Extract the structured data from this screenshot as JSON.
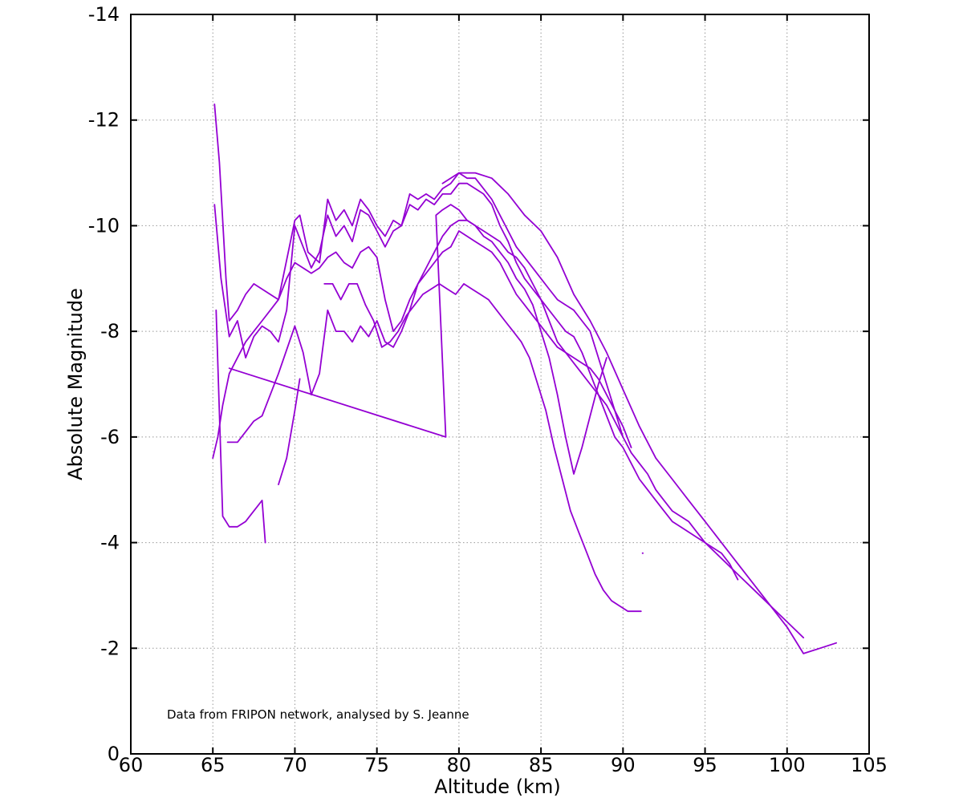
{
  "chart_data": {
    "type": "line",
    "xlabel": "Altitude (km)",
    "ylabel": "Absolute Magnitude",
    "xlim": [
      60,
      105
    ],
    "ylim": [
      0,
      -14
    ],
    "y_inverted": true,
    "x_ticks": [
      60,
      65,
      70,
      75,
      80,
      85,
      90,
      95,
      100,
      105
    ],
    "y_ticks": [
      0,
      -2,
      -4,
      -6,
      -8,
      -10,
      -12,
      -14
    ],
    "x_tick_labels": [
      "60",
      "65",
      "70",
      "75",
      "80",
      "85",
      "90",
      "95",
      "100",
      "105"
    ],
    "y_tick_labels": [
      "0",
      "-2",
      "-4",
      "-6",
      "-8",
      "-10",
      "-12",
      "-14"
    ],
    "grid": true,
    "line_color": "#9400d3",
    "annotation": "Data from FRIPON network, analysed by S. Jeanne",
    "series": [
      {
        "x": [
          65.1,
          65.4,
          65.6,
          65.8,
          66.0,
          66.5,
          67.0,
          67.5,
          68.0,
          69.0,
          70.0,
          70.3,
          70.8,
          71.5,
          72.0,
          72.5,
          73.0,
          73.5,
          74.0,
          74.5,
          75.0,
          75.5,
          76.0,
          76.5,
          77.0,
          77.5,
          78.0,
          78.5,
          79.0,
          79.5,
          80.0,
          80.5,
          81.0,
          81.5,
          82.0,
          82.5,
          83.0,
          83.5,
          84.0,
          84.5,
          85.0,
          85.5,
          86.0,
          86.5,
          87.0,
          87.5,
          88.0,
          88.5,
          89.0,
          89.5,
          90.0
        ],
        "y": [
          -12.3,
          -11.2,
          -10.1,
          -9.0,
          -8.2,
          -8.4,
          -8.7,
          -8.9,
          -8.8,
          -8.6,
          -10.1,
          -10.2,
          -9.5,
          -9.3,
          -10.5,
          -10.1,
          -10.3,
          -10.0,
          -10.5,
          -10.3,
          -10.0,
          -9.8,
          -10.1,
          -10.0,
          -10.6,
          -10.5,
          -10.6,
          -10.5,
          -10.7,
          -10.8,
          -11.0,
          -10.9,
          -10.9,
          -10.7,
          -10.5,
          -10.2,
          -9.9,
          -9.6,
          -9.4,
          -9.2,
          -9.0,
          -8.8,
          -8.6,
          -8.5,
          -8.4,
          -8.2,
          -8.0,
          -7.5,
          -7.0,
          -6.5,
          -6.0
        ]
      },
      {
        "x": [
          65.1,
          65.5,
          66.0,
          66.5,
          67.0,
          67.5,
          68.0,
          68.5,
          69.0,
          69.5,
          70.0,
          70.5,
          71.0,
          71.5,
          72.0,
          72.5,
          73.0,
          73.5,
          74.0,
          74.5,
          75.0,
          75.5,
          76.0,
          76.5,
          77.0,
          77.5,
          78.0,
          78.5,
          79.0,
          79.5,
          80.0,
          80.5,
          81.0,
          81.5,
          82.0,
          82.5,
          83.0,
          83.5,
          84.0,
          84.5,
          85.0,
          85.5,
          86.0,
          86.5,
          87.0,
          87.5,
          88.0,
          88.5,
          89.0,
          89.5,
          90.0,
          90.5,
          91.0,
          91.5,
          92.0,
          92.5,
          93.0,
          93.5,
          94.0,
          94.5,
          95.0,
          95.5,
          96.0,
          96.5,
          97.0
        ],
        "y": [
          -10.4,
          -9.0,
          -7.9,
          -8.2,
          -7.5,
          -7.9,
          -8.1,
          -8.0,
          -7.8,
          -8.4,
          -10.0,
          -9.6,
          -9.2,
          -9.5,
          -10.2,
          -9.8,
          -10.0,
          -9.7,
          -10.3,
          -10.2,
          -9.9,
          -9.6,
          -9.9,
          -10.0,
          -10.4,
          -10.3,
          -10.5,
          -10.4,
          -10.6,
          -10.6,
          -10.8,
          -10.8,
          -10.7,
          -10.6,
          -10.4,
          -10.0,
          -9.7,
          -9.3,
          -9.0,
          -8.8,
          -8.6,
          -8.4,
          -8.2,
          -8.0,
          -7.9,
          -7.6,
          -7.2,
          -6.8,
          -6.4,
          -6.0,
          -5.8,
          -5.5,
          -5.2,
          -5.0,
          -4.8,
          -4.6,
          -4.4,
          -4.3,
          -4.2,
          -4.1,
          -4.0,
          -3.9,
          -3.8,
          -3.6,
          -3.3
        ]
      },
      {
        "x": [
          65.0,
          65.3,
          65.6,
          66.0,
          66.5,
          67.0,
          67.5,
          68.0,
          68.5,
          69.0,
          69.5,
          70.0,
          70.5,
          71.0,
          71.5,
          72.0,
          72.5,
          73.0,
          73.5,
          74.0,
          74.5,
          75.0,
          75.5,
          76.0,
          76.5,
          77.0,
          77.5,
          78.0,
          78.5,
          79.0,
          79.5,
          80.0,
          80.5,
          81.0,
          81.5,
          82.0,
          82.5,
          83.0,
          83.5,
          84.0,
          84.5,
          85.0,
          85.5,
          86.0,
          86.5,
          87.0,
          87.5,
          88.0,
          88.5,
          89.0,
          89.5,
          90.0,
          90.5,
          91.0,
          91.5,
          92.0,
          92.5,
          93.0,
          93.5,
          94.0,
          94.5,
          95.0,
          96.0,
          97.0,
          98.0,
          99.0,
          100.0,
          101.0
        ],
        "y": [
          -5.6,
          -6.0,
          -6.6,
          -7.2,
          -7.5,
          -7.8,
          -8.0,
          -8.2,
          -8.4,
          -8.6,
          -9.0,
          -9.3,
          -9.2,
          -9.1,
          -9.2,
          -9.4,
          -9.5,
          -9.3,
          -9.2,
          -9.5,
          -9.6,
          -9.4,
          -8.6,
          -8.0,
          -8.2,
          -8.6,
          -8.9,
          -9.2,
          -9.5,
          -9.8,
          -10.0,
          -10.1,
          -10.1,
          -10.0,
          -9.9,
          -9.8,
          -9.7,
          -9.5,
          -9.4,
          -9.2,
          -8.9,
          -8.6,
          -8.2,
          -7.8,
          -7.6,
          -7.4,
          -7.2,
          -7.0,
          -6.8,
          -6.6,
          -6.3,
          -6.0,
          -5.7,
          -5.5,
          -5.3,
          -5.0,
          -4.8,
          -4.6,
          -4.5,
          -4.4,
          -4.2,
          -4.0,
          -3.7,
          -3.4,
          -3.1,
          -2.8,
          -2.5,
          -2.2
        ]
      },
      {
        "x": [
          65.9,
          66.5,
          67.0,
          67.5,
          68.0,
          69.0,
          70.0,
          70.5,
          71.0,
          71.5,
          72.0,
          72.5,
          73.0,
          73.5,
          74.0,
          74.5,
          75.0,
          75.5,
          76.0,
          76.5,
          77.0,
          77.5,
          78.0,
          78.5,
          79.0,
          79.5,
          80.0,
          80.5,
          81.0,
          81.5,
          82.0,
          82.5,
          83.0,
          83.5,
          84.0,
          84.5,
          85.0,
          85.5,
          86.0,
          86.5,
          87.0,
          87.5,
          88.0,
          88.5,
          89.0,
          89.5,
          90.0,
          90.5
        ],
        "y": [
          -5.9,
          -5.9,
          -6.1,
          -6.3,
          -6.4,
          -7.2,
          -8.1,
          -7.6,
          -6.8,
          -7.2,
          -8.4,
          -8.0,
          -8.0,
          -7.8,
          -8.1,
          -7.9,
          -8.2,
          -7.8,
          -7.7,
          -8.0,
          -8.4,
          -8.9,
          -9.1,
          -9.3,
          -9.5,
          -9.6,
          -9.9,
          -9.8,
          -9.7,
          -9.6,
          -9.5,
          -9.3,
          -9.0,
          -8.7,
          -8.5,
          -8.3,
          -8.1,
          -7.9,
          -7.7,
          -7.6,
          -7.5,
          -7.4,
          -7.3,
          -7.1,
          -6.8,
          -6.5,
          -6.2,
          -5.8
        ]
      },
      {
        "x": [
          65.2,
          65.6,
          66.0,
          66.5,
          67.0,
          67.5,
          68.0,
          68.2
        ],
        "y": [
          -8.4,
          -4.5,
          -4.3,
          -4.3,
          -4.4,
          -4.6,
          -4.8,
          -4.0
        ]
      },
      {
        "x": [
          69.0,
          69.5,
          70.0,
          70.3
        ],
        "y": [
          -5.1,
          -5.6,
          -6.5,
          -7.1
        ]
      },
      {
        "x": [
          66.0,
          79.2,
          78.6,
          79.0,
          79.5,
          80.0,
          80.5,
          81.0,
          81.5,
          82.0,
          82.5,
          83.0,
          83.5,
          84.0,
          84.5,
          85.0,
          85.5,
          86.0,
          86.5,
          87.0,
          87.5,
          88.0,
          88.5,
          89.0
        ],
        "y": [
          -7.3,
          -6.0,
          -10.2,
          -10.3,
          -10.4,
          -10.3,
          -10.1,
          -10.0,
          -9.8,
          -9.7,
          -9.5,
          -9.3,
          -9.0,
          -8.8,
          -8.5,
          -8.0,
          -7.5,
          -6.8,
          -6.0,
          -5.3,
          -5.8,
          -6.4,
          -7.0,
          -7.5
        ]
      },
      {
        "x": [
          71.8,
          72.3,
          72.8,
          73.3,
          73.8,
          74.3,
          74.8,
          75.3,
          75.8,
          76.3,
          76.8,
          77.3,
          77.8,
          78.3,
          78.8,
          79.3,
          79.8,
          80.3,
          80.8,
          81.3,
          81.8,
          82.3,
          82.8,
          83.3,
          83.8,
          84.3,
          84.8,
          85.3,
          85.8,
          86.3,
          86.8,
          87.3,
          87.8,
          88.3,
          88.8,
          89.3,
          89.8,
          90.3,
          90.8,
          91.1
        ],
        "y": [
          -8.9,
          -8.9,
          -8.6,
          -8.9,
          -8.9,
          -8.5,
          -8.2,
          -7.7,
          -7.8,
          -8.0,
          -8.3,
          -8.5,
          -8.7,
          -8.8,
          -8.9,
          -8.8,
          -8.7,
          -8.9,
          -8.8,
          -8.7,
          -8.6,
          -8.4,
          -8.2,
          -8.0,
          -7.8,
          -7.5,
          -7.0,
          -6.5,
          -5.8,
          -5.2,
          -4.6,
          -4.2,
          -3.8,
          -3.4,
          -3.1,
          -2.9,
          -2.8,
          -2.7,
          -2.7,
          -2.7
        ]
      },
      {
        "x": [
          79.0,
          80.0,
          81.0,
          82.0,
          83.0,
          84.0,
          85.0,
          86.0,
          87.0,
          88.0,
          89.0,
          90.0,
          91.0,
          92.0,
          93.0,
          94.0,
          95.0,
          96.0,
          97.0,
          98.0,
          99.0,
          100.0,
          101.0,
          102.0,
          103.0
        ],
        "y": [
          -10.8,
          -11.0,
          -11.0,
          -10.9,
          -10.6,
          -10.2,
          -9.9,
          -9.4,
          -8.7,
          -8.2,
          -7.6,
          -6.9,
          -6.2,
          -5.6,
          -5.2,
          -4.8,
          -4.4,
          -4.0,
          -3.6,
          -3.2,
          -2.8,
          -2.4,
          -1.9,
          -2.0,
          -2.1
        ]
      },
      {
        "x": [
          91.2
        ],
        "y": [
          -3.8
        ]
      }
    ]
  }
}
